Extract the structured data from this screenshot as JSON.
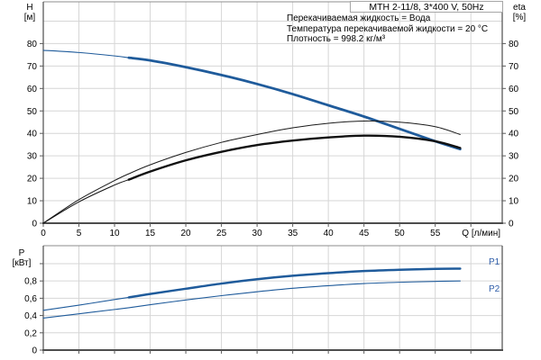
{
  "info": {
    "lines": [
      "Перекачиваемая жидкость = Вода",
      "Температура перекачиваемой жидкости = 20 °C",
      "Плотность = 998.2 кг/м³"
    ]
  },
  "colors": {
    "curve_blue": "#1f5b9b",
    "curve_black": "#1a1a1a",
    "grid": "#d6d6d6",
    "frame": "#8c8c8c",
    "axis": "#5a5a5a",
    "axis_dark": "#4d4d4d",
    "label": "#000000",
    "p_label_blue": "#2d5ca8",
    "box_border": "#a6a6a6"
  },
  "chart_data": [
    {
      "id": "head-efficiency-chart",
      "type": "line",
      "title": "MTH 2-11/8, 3*400 V, 50Hz",
      "x_label": "Q [л/мин]",
      "y_left_label": [
        "H",
        "[м]"
      ],
      "y_right_label": [
        "eta",
        "[%]"
      ],
      "x_range": [
        0,
        64.4
      ],
      "y_range": [
        0,
        98.6
      ],
      "x_grid": [
        5,
        10,
        15,
        20,
        25,
        30,
        35,
        40,
        45,
        50,
        55,
        60
      ],
      "y_grid": [
        10,
        20,
        30,
        40,
        50,
        60,
        70,
        80,
        90
      ],
      "x_ticks": [
        {
          "v": 0,
          "label": "0"
        },
        {
          "v": 5,
          "label": "5"
        },
        {
          "v": 10,
          "label": "10"
        },
        {
          "v": 15,
          "label": "15"
        },
        {
          "v": 20,
          "label": "20"
        },
        {
          "v": 25,
          "label": "25"
        },
        {
          "v": 30,
          "label": "30"
        },
        {
          "v": 35,
          "label": "35"
        },
        {
          "v": 40,
          "label": "40"
        },
        {
          "v": 45,
          "label": "45"
        },
        {
          "v": 50,
          "label": "50"
        },
        {
          "v": 55,
          "label": "55"
        },
        {
          "v": 60,
          "label": ""
        }
      ],
      "y_ticks_left": [
        {
          "v": 0,
          "label": "0"
        },
        {
          "v": 10,
          "label": "10"
        },
        {
          "v": 20,
          "label": "20"
        },
        {
          "v": 30,
          "label": "30"
        },
        {
          "v": 40,
          "label": "40"
        },
        {
          "v": 50,
          "label": "50"
        },
        {
          "v": 60,
          "label": "60"
        },
        {
          "v": 70,
          "label": "70"
        },
        {
          "v": 80,
          "label": "80"
        }
      ],
      "y_ticks_right": [
        {
          "v": 0,
          "label": "0"
        },
        {
          "v": 10,
          "label": "10"
        },
        {
          "v": 20,
          "label": "20"
        },
        {
          "v": 30,
          "label": "30"
        },
        {
          "v": 40,
          "label": "40"
        },
        {
          "v": 50,
          "label": "50"
        },
        {
          "v": 60,
          "label": "60"
        },
        {
          "v": 70,
          "label": "70"
        },
        {
          "v": 80,
          "label": "80"
        }
      ],
      "x": [
        0,
        5,
        10,
        12,
        15,
        20,
        25,
        30,
        35,
        40,
        45,
        50,
        55,
        58.5
      ],
      "series": [
        {
          "name": "H-curve",
          "unit": "м",
          "color": "#1f5b9b",
          "width_thin": 1.1,
          "width_thick": 2.8,
          "thick_from": 12,
          "values": [
            77,
            76,
            74.5,
            73.7,
            72.5,
            69.5,
            66,
            62,
            57.5,
            52.5,
            47.5,
            42,
            36.5,
            33
          ]
        },
        {
          "name": "eta-pump",
          "unit": "%",
          "color": "#1a1a1a",
          "width_thin": 1,
          "values": [
            0,
            10.5,
            19,
            22,
            26,
            31.5,
            36,
            39.5,
            42.5,
            44.5,
            45.5,
            45,
            43,
            39.5
          ]
        },
        {
          "name": "eta-pump-motor",
          "unit": "%",
          "color": "#111111",
          "width_thin": 1,
          "width_thick": 2.4,
          "thick_from": 12,
          "values": [
            0,
            9.5,
            17,
            19.4,
            23,
            28,
            31.8,
            34.8,
            36.8,
            38.2,
            39,
            38.5,
            36.5,
            33.5
          ]
        }
      ]
    },
    {
      "id": "power-chart",
      "type": "line",
      "title": "",
      "x_label": "",
      "y_left_label": [
        "P",
        "[кВт]"
      ],
      "x_range": [
        0,
        64.4
      ],
      "y_range": [
        0,
        1.208
      ],
      "x_grid": [
        5,
        10,
        15,
        20,
        25,
        30,
        35,
        40,
        45,
        50,
        55,
        60
      ],
      "y_grid": [
        0.2,
        0.4,
        0.6,
        0.8,
        1.0
      ],
      "x_ticks": [
        {
          "v": 0,
          "label": ""
        },
        {
          "v": 5,
          "label": ""
        },
        {
          "v": 10,
          "label": ""
        },
        {
          "v": 15,
          "label": ""
        },
        {
          "v": 20,
          "label": ""
        },
        {
          "v": 25,
          "label": ""
        },
        {
          "v": 30,
          "label": ""
        },
        {
          "v": 35,
          "label": ""
        },
        {
          "v": 40,
          "label": ""
        },
        {
          "v": 45,
          "label": ""
        },
        {
          "v": 50,
          "label": ""
        },
        {
          "v": 55,
          "label": ""
        },
        {
          "v": 60,
          "label": ""
        }
      ],
      "y_ticks_left": [
        {
          "v": 0,
          "label": "0"
        },
        {
          "v": 0.2,
          "label": "0,2"
        },
        {
          "v": 0.4,
          "label": "0,4"
        },
        {
          "v": 0.6,
          "label": "0,6"
        },
        {
          "v": 0.8,
          "label": "0,8"
        },
        {
          "v": 1.0,
          "label": ""
        }
      ],
      "x": [
        0,
        5,
        10,
        12,
        15,
        20,
        25,
        30,
        35,
        40,
        45,
        50,
        55,
        58.5
      ],
      "series": [
        {
          "name": "P1",
          "label": "P1",
          "unit": "кВт",
          "color": "#1f5b9b",
          "width_thin": 1.1,
          "width_thick": 2.5,
          "thick_from": 12,
          "values": [
            0.46,
            0.52,
            0.585,
            0.61,
            0.65,
            0.71,
            0.77,
            0.82,
            0.86,
            0.89,
            0.915,
            0.93,
            0.94,
            0.943
          ]
        },
        {
          "name": "P2",
          "label": "P2",
          "unit": "кВт",
          "color": "#1f5b9b",
          "width_thin": 1.1,
          "values": [
            0.37,
            0.42,
            0.47,
            0.49,
            0.525,
            0.58,
            0.63,
            0.675,
            0.715,
            0.745,
            0.77,
            0.785,
            0.795,
            0.8
          ]
        }
      ]
    }
  ]
}
